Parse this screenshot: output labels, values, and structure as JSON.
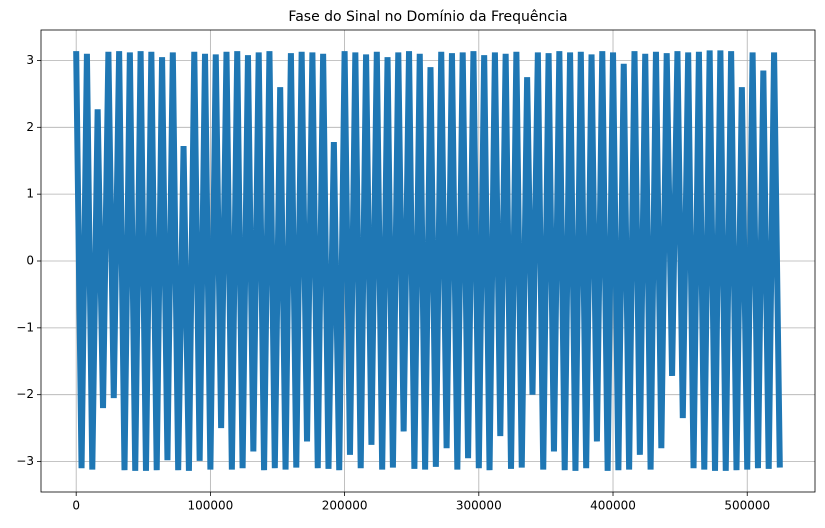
{
  "chart_data": {
    "type": "line",
    "title": "Fase do Sinal no Domínio da Frequência",
    "x": [
      0,
      4000,
      8000,
      12000,
      16000,
      20000,
      24000,
      28000,
      32000,
      36000,
      40000,
      44000,
      48000,
      52000,
      56000,
      60000,
      64000,
      68000,
      72000,
      76000,
      80000,
      84000,
      88000,
      92000,
      96000,
      100000,
      104000,
      108000,
      112000,
      116000,
      120000,
      124000,
      128000,
      132000,
      136000,
      140000,
      144000,
      148000,
      152000,
      156000,
      160000,
      164000,
      168000,
      172000,
      176000,
      180000,
      184000,
      188000,
      192000,
      196000,
      200000,
      204000,
      208000,
      212000,
      216000,
      220000,
      224000,
      228000,
      232000,
      236000,
      240000,
      244000,
      248000,
      252000,
      256000,
      260000,
      264000,
      268000,
      272000,
      276000,
      280000,
      284000,
      288000,
      292000,
      296000,
      300000,
      304000,
      308000,
      312000,
      316000,
      320000,
      324000,
      328000,
      332000,
      336000,
      340000,
      344000,
      348000,
      352000,
      356000,
      360000,
      364000,
      368000,
      372000,
      376000,
      380000,
      384000,
      388000,
      392000,
      396000,
      400000,
      404000,
      408000,
      412000,
      416000,
      420000,
      424000,
      428000,
      432000,
      436000,
      440000,
      444000,
      448000,
      452000,
      456000,
      460000,
      464000,
      468000,
      472000,
      476000,
      480000,
      484000,
      488000,
      492000,
      496000,
      500000,
      504000,
      508000,
      512000,
      516000,
      520000,
      524287
    ],
    "series": [
      {
        "color": "#1f77b4",
        "values": [
          3.14,
          -3.1,
          3.1,
          -3.12,
          2.27,
          -2.2,
          3.13,
          -2.05,
          3.14,
          -3.13,
          3.12,
          -3.14,
          3.14,
          -3.14,
          3.13,
          -3.13,
          3.05,
          -2.98,
          3.12,
          -3.13,
          1.72,
          -3.14,
          3.13,
          -2.99,
          3.1,
          -3.12,
          3.09,
          -2.5,
          3.13,
          -3.12,
          3.14,
          -3.1,
          3.08,
          -2.85,
          3.12,
          -3.13,
          3.14,
          -3.1,
          2.6,
          -3.12,
          3.11,
          -3.09,
          3.13,
          -2.7,
          3.12,
          -3.1,
          3.1,
          -3.11,
          1.78,
          -3.13,
          3.14,
          -2.9,
          3.12,
          -3.1,
          3.09,
          -2.75,
          3.13,
          -3.12,
          3.05,
          -3.09,
          3.12,
          -2.55,
          3.14,
          -3.11,
          3.1,
          -3.12,
          2.9,
          -3.08,
          3.13,
          -2.8,
          3.11,
          -3.12,
          3.12,
          -2.95,
          3.14,
          -3.1,
          3.08,
          -3.13,
          3.12,
          -2.62,
          3.1,
          -3.11,
          3.13,
          -3.09,
          2.75,
          -2.0,
          3.12,
          -3.12,
          3.11,
          -2.85,
          3.14,
          -3.13,
          3.12,
          -3.14,
          3.13,
          -3.1,
          3.09,
          -2.7,
          3.14,
          -3.14,
          3.12,
          -3.13,
          2.95,
          -3.12,
          3.14,
          -2.9,
          3.1,
          -3.12,
          3.13,
          -2.8,
          3.11,
          -1.72,
          3.14,
          -2.35,
          3.12,
          -3.1,
          3.13,
          -3.12,
          3.15,
          -3.14,
          3.15,
          -3.14,
          3.14,
          -3.13,
          2.6,
          -3.12,
          3.12,
          -3.1,
          2.85,
          -3.11,
          3.12,
          -3.09
        ]
      }
    ],
    "xlim": [
      -26214,
      550501
    ],
    "ylim": [
      -3.456,
      3.456
    ],
    "xticks": [
      0,
      100000,
      200000,
      300000,
      400000,
      500000
    ],
    "yticks": [
      -3,
      -2,
      -1,
      0,
      1,
      2,
      3
    ],
    "grid": true
  }
}
